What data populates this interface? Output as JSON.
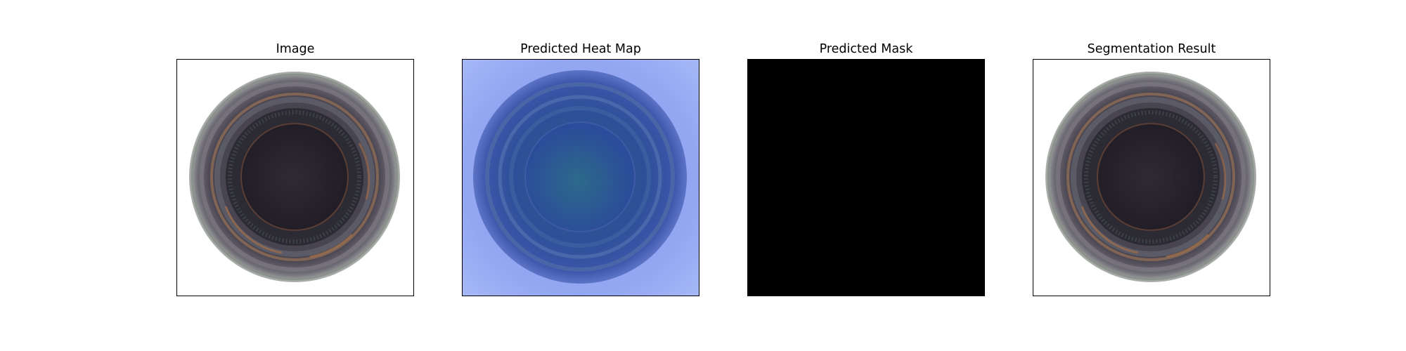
{
  "figure": {
    "panels": [
      {
        "title": "Image",
        "content": "bottle-top-view-photo"
      },
      {
        "title": "Predicted Heat Map",
        "content": "heatmap-overlay"
      },
      {
        "title": "Predicted Mask",
        "content": "empty-mask"
      },
      {
        "title": "Segmentation Result",
        "content": "bottle-top-view-photo"
      }
    ]
  },
  "colors": {
    "frame": "#000000",
    "mask_background": "#000000",
    "heatmap_low": "#93a6f2",
    "heatmap_overlay_dark": "#2b4c9a",
    "bottle_dark": "#2a2630",
    "bottle_ring_rust": "#9a6a4a"
  }
}
